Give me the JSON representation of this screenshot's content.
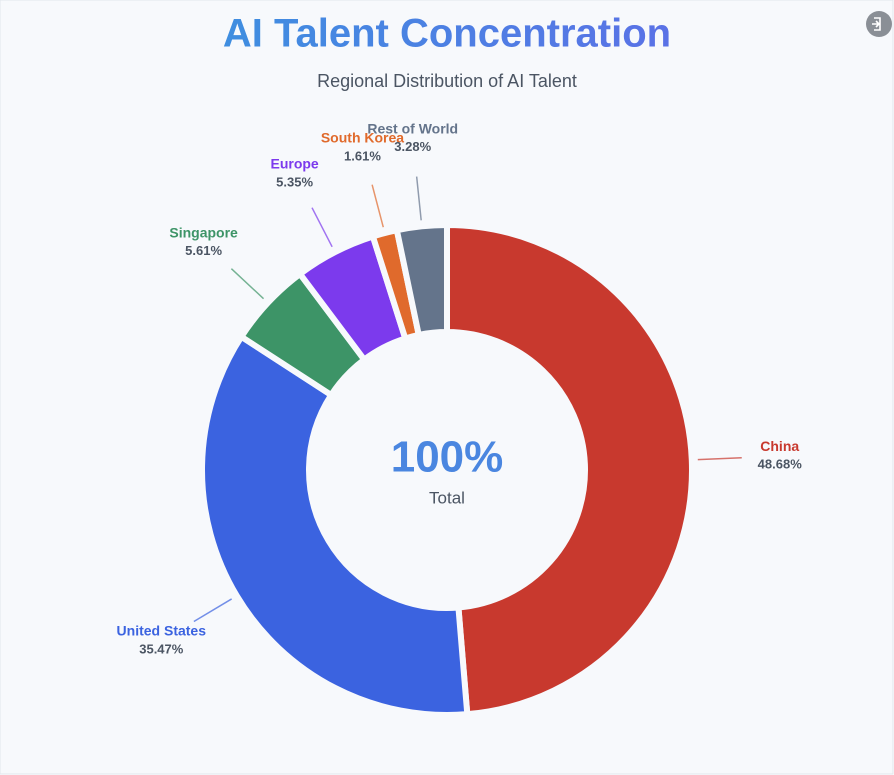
{
  "chart_data": {
    "type": "donut",
    "title": "AI Talent Concentration",
    "subtitle": "Regional Distribution of AI Talent",
    "categories": [
      "China",
      "United States",
      "Singapore",
      "Europe",
      "South Korea",
      "Rest of World"
    ],
    "values": [
      48.68,
      35.47,
      5.61,
      5.35,
      1.61,
      3.28
    ],
    "value_labels": [
      "48.68%",
      "35.47%",
      "5.61%",
      "5.35%",
      "1.61%",
      "3.28%"
    ],
    "colors": [
      "#c8392e",
      "#3b63e0",
      "#3d9467",
      "#7c3aed",
      "#e06a2c",
      "#64748b"
    ],
    "center_label": "100%",
    "center_sublabel": "Total"
  }
}
